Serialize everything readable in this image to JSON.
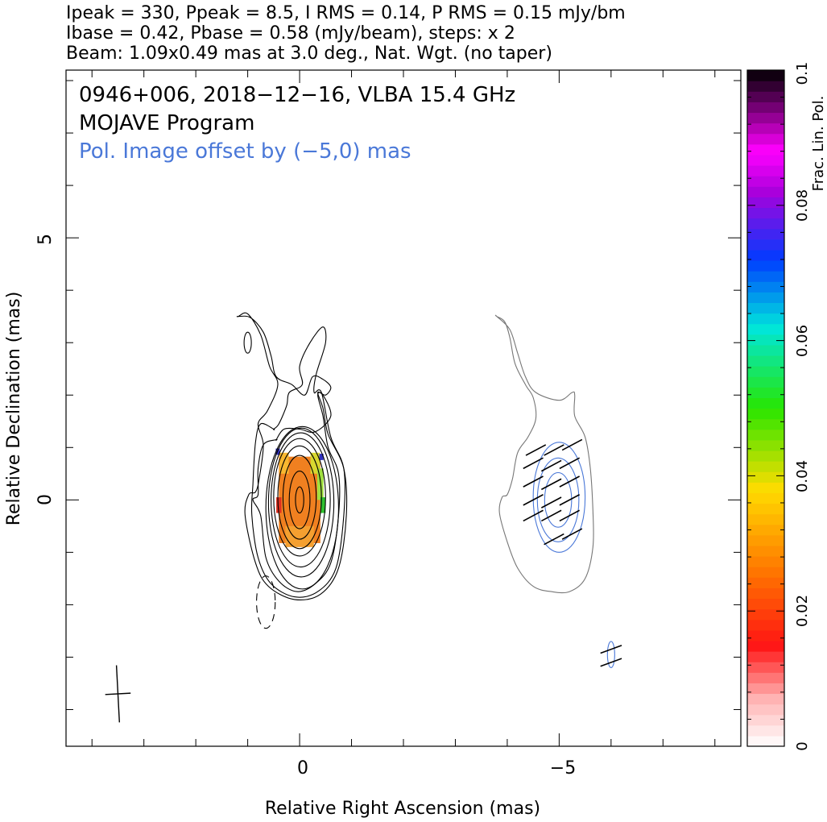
{
  "header": {
    "line1": "Ipeak = 330, Ppeak = 8.5, I RMS = 0.14, P RMS = 0.15 mJy/bm",
    "line2": "Ibase = 0.42, Pbase = 0.58 (mJy/beam), steps: x 2",
    "line3": "Beam: 1.09x0.49 mas at 3.0 deg., Nat. Wgt. (no taper)"
  },
  "plot_title": {
    "line1": "0946+006, 2018−12−16, VLBA 15.4 GHz",
    "line2": "MOJAVE Program",
    "line3": "Pol. Image offset by (−5,0) mas"
  },
  "colors": {
    "title_blue": "#4a78d8",
    "pol_contour": "#4a78d8",
    "stokes_i_contour": "#000000",
    "offset_i_contour": "#777777",
    "evpa_ticks": "#000000"
  },
  "chart_data": {
    "type": "contour",
    "xlabel": "Relative Right Ascension (mas)",
    "ylabel": "Relative Declination (mas)",
    "xlim": [
      4.5,
      -8.5
    ],
    "ylim": [
      -4.7,
      8.2
    ],
    "x_ticks": [
      0,
      -5
    ],
    "x_tick_labels": [
      "0",
      "−5"
    ],
    "y_ticks": [
      0,
      5
    ],
    "y_tick_labels": [
      "0",
      "5"
    ],
    "pol_offset_mas": [
      -5,
      0
    ],
    "colorbar": {
      "label": "Frac. Lin. Pol.",
      "range": [
        0,
        0.1
      ],
      "ticks": [
        0,
        0.02,
        0.04,
        0.06,
        0.08,
        0.1
      ],
      "tick_labels": [
        "0",
        "0.02",
        "0.04",
        "0.06",
        "0.08",
        "0.1"
      ]
    },
    "stokes_i_contours": [
      {
        "type": "ellipse",
        "cx": 0.0,
        "cy": 0.0,
        "rx": 0.08,
        "ry": 0.25
      },
      {
        "type": "ellipse",
        "cx": 0.0,
        "cy": 0.0,
        "rx": 0.2,
        "ry": 0.55
      },
      {
        "type": "ellipse",
        "cx": 0.0,
        "cy": 0.05,
        "rx": 0.32,
        "ry": 0.8
      },
      {
        "type": "ellipse",
        "cx": 0.0,
        "cy": 0.05,
        "rx": 0.42,
        "ry": 0.98
      },
      {
        "type": "ellipse",
        "cx": 0.0,
        "cy": 0.05,
        "rx": 0.5,
        "ry": 1.12
      },
      {
        "type": "ellipse",
        "cx": -0.02,
        "cy": 0.0,
        "rx": 0.57,
        "ry": 1.28
      },
      {
        "type": "ellipse",
        "cx": -0.03,
        "cy": -0.05,
        "rx": 0.63,
        "ry": 1.42
      },
      {
        "type": "ellipse",
        "cx": -0.05,
        "cy": -0.15,
        "rx": 0.7,
        "ry": 1.55
      },
      {
        "type": "poly",
        "pts": [
          [
            0.45,
            1.15
          ],
          [
            0.7,
            1.05
          ],
          [
            0.8,
            0.6
          ],
          [
            0.8,
            0.1
          ],
          [
            0.9,
            0.0
          ],
          [
            0.75,
            -0.3
          ],
          [
            0.65,
            -1.1
          ],
          [
            0.4,
            -1.55
          ],
          [
            0.05,
            -1.75
          ],
          [
            -0.3,
            -1.6
          ],
          [
            -0.6,
            -1.2
          ],
          [
            -0.75,
            -0.3
          ],
          [
            -0.75,
            0.5
          ],
          [
            -0.55,
            1.0
          ],
          [
            -0.45,
            1.6
          ],
          [
            -0.35,
            2.0
          ],
          [
            -0.45,
            2.0
          ],
          [
            -0.6,
            1.6
          ],
          [
            -0.3,
            1.3
          ],
          [
            0.0,
            1.35
          ],
          [
            0.3,
            1.35
          ],
          [
            0.45,
            1.15
          ]
        ]
      },
      {
        "type": "poly",
        "pts": [
          [
            0.5,
            1.35
          ],
          [
            0.75,
            1.45
          ],
          [
            0.85,
            1.1
          ],
          [
            0.9,
            0.3
          ],
          [
            0.92,
            -0.3
          ],
          [
            0.8,
            -1.1
          ],
          [
            0.55,
            -1.6
          ],
          [
            0.1,
            -1.85
          ],
          [
            -0.35,
            -1.75
          ],
          [
            -0.7,
            -1.3
          ],
          [
            -0.85,
            -0.3
          ],
          [
            -0.85,
            0.6
          ],
          [
            -0.6,
            1.2
          ],
          [
            -0.42,
            2.05
          ],
          [
            -0.28,
            2.05
          ],
          [
            -0.32,
            2.4
          ],
          [
            -0.5,
            3.0
          ],
          [
            -0.45,
            3.3
          ],
          [
            -0.2,
            3.0
          ],
          [
            0.0,
            2.55
          ],
          [
            -0.05,
            2.2
          ],
          [
            0.2,
            2.05
          ],
          [
            0.25,
            1.8
          ],
          [
            0.4,
            1.45
          ],
          [
            0.5,
            1.35
          ]
        ]
      },
      {
        "type": "poly",
        "pts": [
          [
            1.18,
            3.5
          ],
          [
            1.0,
            3.55
          ],
          [
            0.75,
            3.15
          ],
          [
            0.58,
            2.55
          ],
          [
            0.42,
            2.2
          ],
          [
            0.62,
            1.7
          ],
          [
            0.8,
            1.45
          ],
          [
            0.7,
            1.05
          ],
          [
            0.78,
            0.4
          ],
          [
            0.85,
            0.15
          ],
          [
            0.98,
            0.1
          ],
          [
            1.05,
            -0.3
          ],
          [
            0.85,
            -1.2
          ],
          [
            0.6,
            -1.65
          ],
          [
            0.1,
            -1.9
          ],
          [
            -0.4,
            -1.8
          ],
          [
            -0.75,
            -1.3
          ],
          [
            -0.9,
            -0.3
          ],
          [
            -0.85,
            0.6
          ],
          [
            -0.55,
            1.25
          ],
          [
            -0.45,
            1.75
          ],
          [
            -0.35,
            2.05
          ],
          [
            -0.5,
            2.0
          ],
          [
            -0.6,
            2.15
          ],
          [
            -0.45,
            2.3
          ],
          [
            -0.25,
            2.35
          ],
          [
            -0.1,
            2.0
          ],
          [
            0.15,
            2.2
          ],
          [
            0.45,
            2.35
          ],
          [
            0.55,
            2.75
          ],
          [
            0.7,
            3.2
          ],
          [
            0.95,
            3.48
          ],
          [
            1.18,
            3.5
          ]
        ]
      },
      {
        "type": "ellipse",
        "cx": 1.0,
        "cy": 3.0,
        "rx": 0.07,
        "ry": 0.2
      }
    ],
    "negative_contour": {
      "cx": 0.65,
      "cy": -1.95,
      "rx": 0.18,
      "ry": 0.5
    },
    "offset_i_contour": [
      [
        -3.8,
        3.5
      ],
      [
        -3.95,
        3.4
      ],
      [
        -4.05,
        3.1
      ],
      [
        -4.15,
        2.6
      ],
      [
        -4.35,
        2.2
      ],
      [
        -4.5,
        1.95
      ],
      [
        -4.55,
        1.55
      ],
      [
        -4.4,
        1.2
      ],
      [
        -4.2,
        0.9
      ],
      [
        -4.1,
        0.4
      ],
      [
        -4.0,
        0.1
      ],
      [
        -3.9,
        0.05
      ],
      [
        -3.85,
        -0.25
      ],
      [
        -4.0,
        -0.8
      ],
      [
        -4.2,
        -1.3
      ],
      [
        -4.5,
        -1.65
      ],
      [
        -4.85,
        -1.75
      ],
      [
        -5.2,
        -1.75
      ],
      [
        -5.5,
        -1.5
      ],
      [
        -5.65,
        -0.9
      ],
      [
        -5.65,
        -0.2
      ],
      [
        -5.6,
        0.6
      ],
      [
        -5.5,
        1.2
      ],
      [
        -5.3,
        1.6
      ],
      [
        -5.3,
        2.0
      ],
      [
        -5.25,
        2.05
      ],
      [
        -5.0,
        1.9
      ],
      [
        -4.55,
        2.05
      ],
      [
        -4.35,
        2.35
      ],
      [
        -4.2,
        2.8
      ],
      [
        -4.05,
        3.25
      ],
      [
        -3.8,
        3.5
      ]
    ],
    "pol_contours": [
      {
        "cx": -5.0,
        "cy": 0.05,
        "rx": 0.5,
        "ry": 1.05
      },
      {
        "cx": -4.98,
        "cy": 0.0,
        "rx": 0.4,
        "ry": 0.8
      },
      {
        "cx": -4.98,
        "cy": 0.0,
        "rx": 0.26,
        "ry": 0.52
      },
      {
        "cx": -6.0,
        "cy": -2.95,
        "rx": 0.07,
        "ry": 0.25
      }
    ],
    "fpol_pixels": [
      {
        "x": 0.0,
        "y": 0.0,
        "w": 0.8,
        "h": 1.65,
        "color": "#f08020"
      },
      {
        "x": 0.0,
        "y": -0.7,
        "w": 0.55,
        "h": 0.4,
        "color": "#f5a030"
      },
      {
        "x": 0.3,
        "y": 0.7,
        "w": 0.18,
        "h": 0.4,
        "color": "#f8b830"
      },
      {
        "x": -0.3,
        "y": 0.7,
        "w": 0.18,
        "h": 0.4,
        "color": "#d8d830"
      },
      {
        "x": -0.4,
        "y": 0.3,
        "w": 0.12,
        "h": 0.6,
        "color": "#a0e040"
      },
      {
        "x": -0.45,
        "y": -0.1,
        "w": 0.1,
        "h": 0.3,
        "color": "#30c030"
      },
      {
        "x": 0.42,
        "y": 0.92,
        "w": 0.08,
        "h": 0.12,
        "color": "#3030c0"
      },
      {
        "x": -0.42,
        "y": 0.82,
        "w": 0.08,
        "h": 0.12,
        "color": "#3030c0"
      },
      {
        "x": 0.4,
        "y": -0.1,
        "w": 0.1,
        "h": 0.3,
        "color": "#e03020"
      }
    ],
    "evpa_ticks": [
      {
        "x": -4.55,
        "y": 0.95,
        "ang": 28
      },
      {
        "x": -4.9,
        "y": 0.95,
        "ang": 28
      },
      {
        "x": -5.25,
        "y": 1.05,
        "ang": 28
      },
      {
        "x": -4.5,
        "y": 0.7,
        "ang": 28
      },
      {
        "x": -4.85,
        "y": 0.65,
        "ang": 28
      },
      {
        "x": -5.2,
        "y": 0.7,
        "ang": 28
      },
      {
        "x": -4.5,
        "y": 0.35,
        "ang": 28
      },
      {
        "x": -4.85,
        "y": 0.3,
        "ang": 28
      },
      {
        "x": -5.2,
        "y": 0.35,
        "ang": 28
      },
      {
        "x": -4.5,
        "y": 0.0,
        "ang": 28
      },
      {
        "x": -4.85,
        "y": -0.05,
        "ang": 28
      },
      {
        "x": -5.2,
        "y": 0.0,
        "ang": 28
      },
      {
        "x": -4.5,
        "y": -0.3,
        "ang": 28
      },
      {
        "x": -4.85,
        "y": -0.3,
        "ang": 28
      },
      {
        "x": -5.2,
        "y": -0.3,
        "ang": 28
      },
      {
        "x": -4.9,
        "y": -0.75,
        "ang": 28
      },
      {
        "x": -5.25,
        "y": -0.65,
        "ang": 28
      },
      {
        "x": -6.0,
        "y": -2.85,
        "ang": 20
      },
      {
        "x": -6.0,
        "y": -3.1,
        "ang": 20
      }
    ],
    "beam": {
      "x": 3.5,
      "y": -3.7,
      "major": 1.09,
      "minor": 0.49,
      "pa_deg": 3.0
    }
  }
}
